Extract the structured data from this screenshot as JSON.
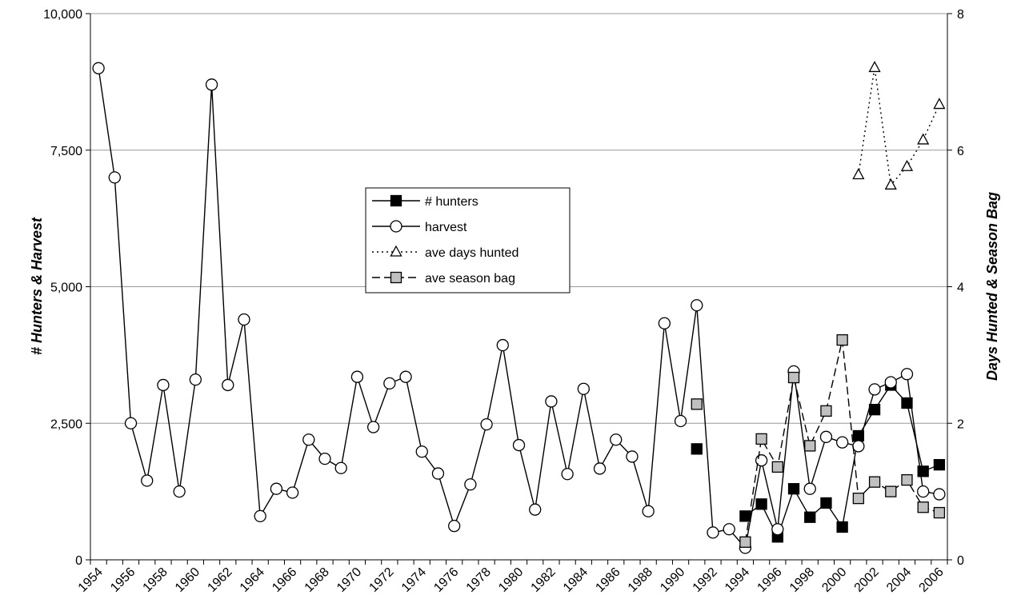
{
  "chart_data": {
    "type": "line",
    "y_label": "# Hunters & Harvest",
    "y2_label": "Days Hunted & Season Bag",
    "categories": [
      "1954",
      null,
      "1956",
      null,
      "1958",
      null,
      "1960",
      null,
      "1962",
      null,
      "1964",
      null,
      "1966",
      null,
      "1968",
      null,
      "1970",
      null,
      "1972",
      null,
      "1974",
      null,
      "1976",
      null,
      "1978",
      null,
      "1980",
      null,
      "1982",
      null,
      "1984",
      null,
      "1986",
      null,
      "1988",
      null,
      "1990",
      null,
      "1992",
      null,
      "1994",
      null,
      "1996",
      null,
      "1998",
      null,
      "2000",
      null,
      "2002",
      null,
      "2004",
      null,
      "2006"
    ],
    "ylim": [
      0,
      10000
    ],
    "yticks": [
      0,
      {
        "value": 2500,
        "label": "2,500"
      },
      {
        "value": 5000,
        "label": "5,000"
      },
      {
        "value": 7500,
        "label": "7,500"
      },
      {
        "value": 10000,
        "label": "10,000"
      }
    ],
    "y2lim": [
      0,
      8
    ],
    "y2ticks": [
      0,
      2,
      4,
      6,
      8
    ],
    "grid": true,
    "series": [
      {
        "name": "# hunters",
        "color": "#000000",
        "marker": "square",
        "marker_fill": "#000000",
        "dash": "solid",
        "values": [
          null,
          null,
          null,
          null,
          null,
          null,
          null,
          null,
          null,
          null,
          null,
          null,
          null,
          null,
          null,
          null,
          null,
          null,
          null,
          null,
          null,
          null,
          null,
          null,
          null,
          null,
          null,
          null,
          null,
          null,
          null,
          null,
          null,
          null,
          null,
          null,
          null,
          2030,
          null,
          null,
          800,
          1020,
          420,
          1300,
          780,
          1040,
          600,
          2270,
          2750,
          3200,
          2870,
          1620,
          1740
        ]
      },
      {
        "name": "harvest",
        "color": "#000000",
        "marker": "circle",
        "marker_fill": "#ffffff",
        "dash": "solid",
        "values": [
          9000,
          7000,
          2500,
          1450,
          3200,
          1250,
          3300,
          8700,
          3200,
          4400,
          800,
          1300,
          1230,
          2200,
          1850,
          1680,
          3350,
          2430,
          3230,
          3350,
          1980,
          1580,
          620,
          1380,
          2480,
          3930,
          2100,
          920,
          2900,
          1570,
          3130,
          1670,
          2200,
          1890,
          890,
          4330,
          2540,
          4660,
          500,
          560,
          220,
          1820,
          560,
          3450,
          1300,
          2250,
          2150,
          2080,
          3120,
          3250,
          3400,
          1250,
          1200
        ]
      },
      {
        "name": "ave days hunted",
        "color": "#000000",
        "marker": "triangle",
        "marker_fill": "#ffffff",
        "dash": "dotted",
        "axis": "y2",
        "values": [
          null,
          null,
          null,
          null,
          null,
          null,
          null,
          null,
          null,
          null,
          null,
          null,
          null,
          null,
          null,
          null,
          null,
          null,
          null,
          null,
          null,
          null,
          null,
          null,
          null,
          null,
          null,
          null,
          null,
          null,
          null,
          null,
          null,
          null,
          null,
          null,
          null,
          null,
          null,
          null,
          null,
          null,
          null,
          null,
          null,
          null,
          null,
          5.64,
          7.21,
          5.49,
          5.76,
          6.15,
          6.67
        ]
      },
      {
        "name": "ave season bag",
        "color": "#000000",
        "marker": "square",
        "marker_fill": "#c0c0c0",
        "dash": "dashed",
        "axis": "y2",
        "values": [
          null,
          null,
          null,
          null,
          null,
          null,
          null,
          null,
          null,
          null,
          null,
          null,
          null,
          null,
          null,
          null,
          null,
          null,
          null,
          null,
          null,
          null,
          null,
          null,
          null,
          null,
          null,
          null,
          null,
          null,
          null,
          null,
          null,
          null,
          null,
          null,
          null,
          2.28,
          null,
          null,
          0.26,
          1.77,
          1.36,
          2.67,
          1.67,
          2.18,
          3.22,
          0.9,
          1.14,
          1.0,
          1.17,
          0.77,
          0.69
        ]
      }
    ]
  }
}
